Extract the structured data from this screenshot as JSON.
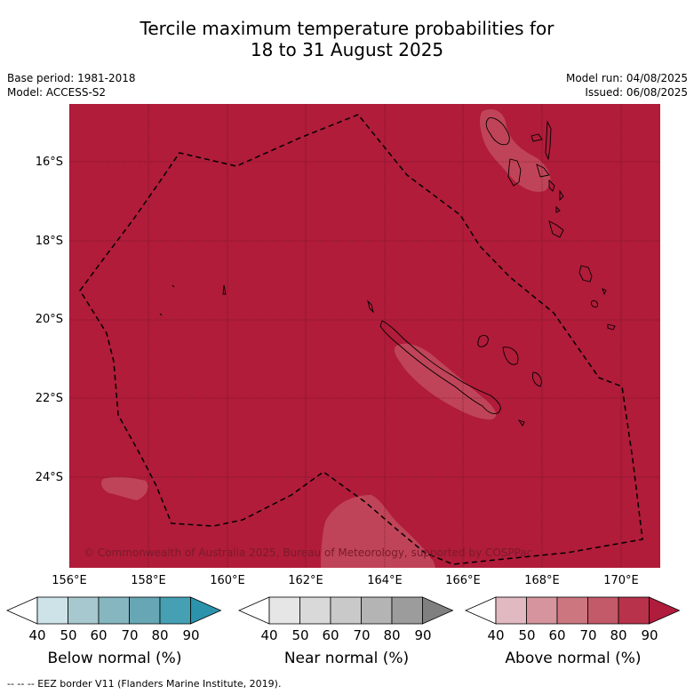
{
  "title_line1": "Tercile maximum temperature probabilities for",
  "title_line2": "18 to 31 August 2025",
  "base_period": "Base period: 1981-2018",
  "model": "Model: ACCESS-S2",
  "model_run": "Model run: 04/08/2025",
  "issued": "Issued: 06/08/2025",
  "lat_labels": [
    "16°S",
    "18°S",
    "20°S",
    "22°S",
    "24°S"
  ],
  "lon_labels": [
    "156°E",
    "158°E",
    "160°E",
    "162°E",
    "164°E",
    "166°E",
    "168°E",
    "170°E"
  ],
  "copyright": "© Commonwealth of Australia 2025, Bureau of Meteorology, supported by COSPPac",
  "colorbars": {
    "below": {
      "label": "Below normal (%)",
      "colors": [
        "#ffffff",
        "#cde3e8",
        "#a6c8ce",
        "#86b6c0",
        "#67a7b5",
        "#45a0b4",
        "#2b93ac"
      ]
    },
    "near": {
      "label": "Near normal (%)",
      "colors": [
        "#ffffff",
        "#e6e6e6",
        "#d9d9d9",
        "#c9c9c9",
        "#b4b4b4",
        "#9c9c9c",
        "#808080"
      ]
    },
    "above": {
      "label": "Above normal (%)",
      "colors": [
        "#ffffff",
        "#e1b9c0",
        "#d6959e",
        "#cc7780",
        "#c25a69",
        "#b7324a",
        "#b01c3c"
      ]
    }
  },
  "ticks": [
    "40",
    "50",
    "60",
    "70",
    "80",
    "90"
  ],
  "legend_note": "--  --  -- EEZ border V11 (Flanders Marine Institute, 2019).",
  "map_colors": {
    "background": "#b01c3a",
    "lighter": "#c04459",
    "grid": "#5a0f1f"
  }
}
